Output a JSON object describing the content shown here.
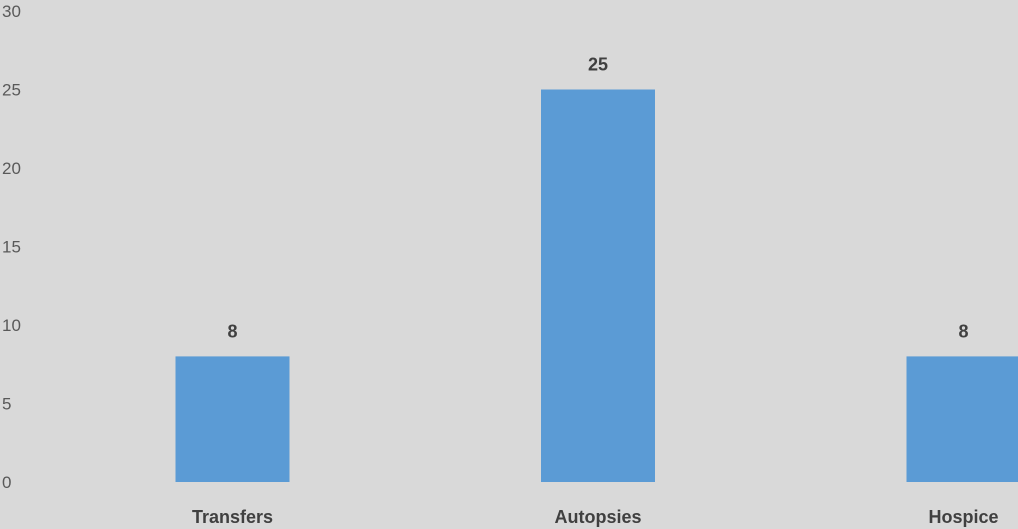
{
  "chart_data": {
    "type": "bar",
    "categories": [
      "Transfers",
      "Autopsies",
      "Hospice"
    ],
    "values": [
      8,
      25,
      8
    ],
    "title": "",
    "xlabel": "",
    "ylabel": "",
    "ylim": [
      0,
      30
    ],
    "yticks": [
      0,
      5,
      10,
      15,
      20,
      25,
      30
    ],
    "grid": false,
    "legend": "none",
    "data_labels": true,
    "colors": {
      "bar": "#5b9bd5",
      "background": "#d9d9d9",
      "label_text": "#404040",
      "tick_text": "#595959"
    }
  }
}
